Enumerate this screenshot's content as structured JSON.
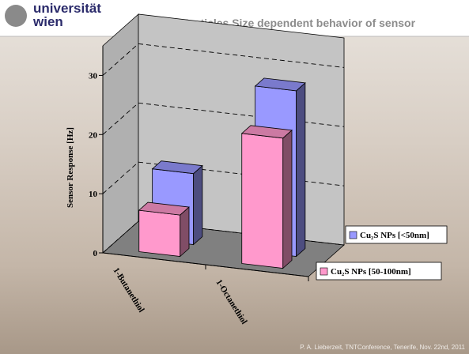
{
  "header": {
    "logo": [
      "universität",
      "wien"
    ],
    "title": "Particles Size dependent behavior of sensor"
  },
  "chart_data": {
    "type": "bar3d",
    "y_label": "Sensor Response [Hz]",
    "categories": [
      "1-Butanethiol",
      "1-Octanethiol"
    ],
    "series": [
      {
        "name": "Cu₂S NPs [<50nm]",
        "color": "#9999ff",
        "values": [
          12,
          28
        ]
      },
      {
        "name": "Cu₂S NPs [50-100nm]",
        "color": "#ff99cc",
        "values": [
          7,
          22
        ]
      }
    ],
    "ylim": [
      0,
      35
    ],
    "yticks": [
      0,
      10,
      20,
      30
    ],
    "grid": true
  },
  "footer": "P. A. Lieberzeit, TNTConference, Tenerife, Nov. 22nd, 2011"
}
